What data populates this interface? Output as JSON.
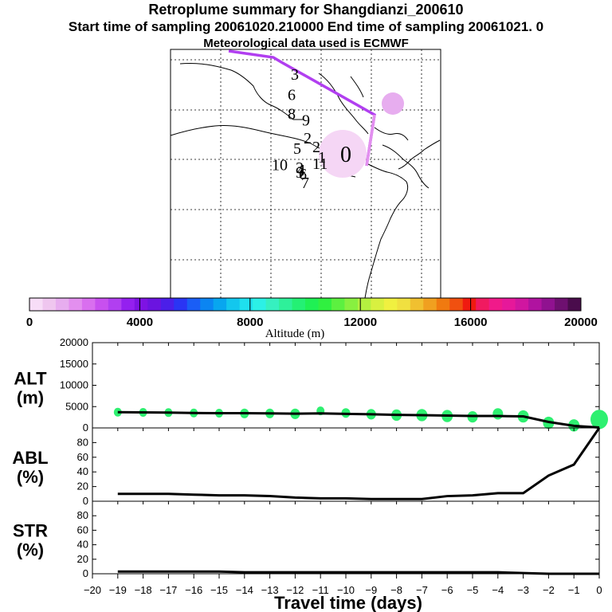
{
  "header": {
    "title": "Retroplume summary for Shangdianzi_200610",
    "sampling": "Start time of sampling 20061020.210000     End time of sampling 20061021.     0",
    "met": "Meteorological data used is ECMWF"
  },
  "map": {
    "labels": [
      {
        "text": "3",
        "x": 2.5,
        "y": 1.5
      },
      {
        "text": "6",
        "x": 2.1,
        "y": 3.1
      },
      {
        "text": "8",
        "x": 2.1,
        "y": 4.6
      },
      {
        "text": "9",
        "x": 3.9,
        "y": 5.1
      },
      {
        "text": "2",
        "x": 4.1,
        "y": 6.5
      },
      {
        "text": "5",
        "x": 2.8,
        "y": 7.3
      },
      {
        "text": "10",
        "x": 0.1,
        "y": 8.6
      },
      {
        "text": "3",
        "x": 3.1,
        "y": 8.8
      },
      {
        "text": "4",
        "x": 3.3,
        "y": 9.0
      },
      {
        "text": "9",
        "x": 3.1,
        "y": 9.2
      },
      {
        "text": "6",
        "x": 3.5,
        "y": 9.3
      },
      {
        "text": "7",
        "x": 3.8,
        "y": 10.0
      },
      {
        "text": "11",
        "x": 5.2,
        "y": 8.5
      },
      {
        "text": "2",
        "x": 5.2,
        "y": 7.2
      },
      {
        "text": "1",
        "x": 5.9,
        "y": 8.0
      }
    ]
  },
  "colorbar": {
    "colors": [
      "#f7ddf7",
      "#efc6ef",
      "#e7adef",
      "#e38fef",
      "#d96fef",
      "#c850ef",
      "#b13ff0",
      "#9420ef",
      "#7e13e3",
      "#6b14e0",
      "#4b1fe9",
      "#2a35f4",
      "#1a5ef6",
      "#0b85f2",
      "#08a6ef",
      "#13c7ee",
      "#1fe0ee",
      "#2cf0e6",
      "#36f0c0",
      "#2ef09a",
      "#24f074",
      "#1ff054",
      "#30f040",
      "#5cf040",
      "#88f040",
      "#b4f040",
      "#d8f040",
      "#f0f040",
      "#f0e040",
      "#f0c030",
      "#f0a020",
      "#f07a10",
      "#f05010",
      "#f01a10",
      "#f01a60",
      "#f01a8a",
      "#e6189a",
      "#d016a0",
      "#b013a0",
      "#901290",
      "#6e1070",
      "#4a0c4c"
    ],
    "tick_labels": [
      "0",
      "4000",
      "8000",
      "12000",
      "16000",
      "20000"
    ],
    "xlabel": "Altitude (m)"
  },
  "chart_data": [
    {
      "type": "line",
      "title": "ALT (m)",
      "title_line1": "ALT",
      "title_line2": "(m)",
      "ylim": [
        0,
        20000
      ],
      "yticks": [
        "20000",
        "15000",
        "10000",
        "5000",
        "0"
      ],
      "ytick_values": [
        20000,
        15000,
        10000,
        5000,
        0
      ],
      "x": [
        -19,
        -18,
        -17,
        -16,
        -15,
        -14,
        -13,
        -12,
        -11,
        -10,
        -9,
        -8,
        -7,
        -6,
        -5,
        -4,
        -3,
        -2,
        -1,
        0
      ],
      "values": [
        3700,
        3650,
        3600,
        3500,
        3450,
        3450,
        3400,
        3350,
        3400,
        3300,
        3200,
        3050,
        3000,
        2900,
        2800,
        2800,
        2700,
        1400,
        500,
        100
      ],
      "markers": [
        {
          "x": -19,
          "y": 3700,
          "s": 10
        },
        {
          "x": -18,
          "y": 3650,
          "s": 10
        },
        {
          "x": -17,
          "y": 3600,
          "s": 10
        },
        {
          "x": -16,
          "y": 3500,
          "s": 10
        },
        {
          "x": -15,
          "y": 3450,
          "s": 10
        },
        {
          "x": -14,
          "y": 3400,
          "s": 11
        },
        {
          "x": -13,
          "y": 3400,
          "s": 11
        },
        {
          "x": -12,
          "y": 3300,
          "s": 12
        },
        {
          "x": -11,
          "y": 4000,
          "s": 10
        },
        {
          "x": -10,
          "y": 3500,
          "s": 11
        },
        {
          "x": -9,
          "y": 3200,
          "s": 12
        },
        {
          "x": -8,
          "y": 3000,
          "s": 13
        },
        {
          "x": -7,
          "y": 3000,
          "s": 14
        },
        {
          "x": -6,
          "y": 2800,
          "s": 14
        },
        {
          "x": -5,
          "y": 2600,
          "s": 13
        },
        {
          "x": -4,
          "y": 3300,
          "s": 13
        },
        {
          "x": -3,
          "y": 2700,
          "s": 14
        },
        {
          "x": -2,
          "y": 1200,
          "s": 14
        },
        {
          "x": -1,
          "y": 600,
          "s": 14
        },
        {
          "x": 0,
          "y": 2000,
          "s": 22
        }
      ]
    },
    {
      "type": "line",
      "title": "ABL (%)",
      "title_line1": "ABL",
      "title_line2": "(%)",
      "ylim": [
        0,
        100
      ],
      "yticks": [
        "80",
        "60",
        "40",
        "20",
        "0"
      ],
      "ytick_values": [
        80,
        60,
        40,
        20,
        0
      ],
      "x": [
        -19,
        -18,
        -17,
        -16,
        -15,
        -14,
        -13,
        -12,
        -11,
        -10,
        -9,
        -8,
        -7,
        -6,
        -5,
        -4,
        -3,
        -2,
        -1,
        0
      ],
      "values": [
        10,
        10,
        10,
        9,
        8,
        8,
        7,
        5,
        4,
        4,
        3,
        3,
        3,
        7,
        8,
        11,
        11,
        35,
        50,
        100
      ]
    },
    {
      "type": "line",
      "title": "STR (%)",
      "title_line1": "STR",
      "title_line2": "(%)",
      "ylim": [
        0,
        100
      ],
      "yticks": [
        "80",
        "60",
        "40",
        "20",
        "0"
      ],
      "ytick_values": [
        80,
        60,
        40,
        20,
        0
      ],
      "x": [
        -19,
        -18,
        -17,
        -16,
        -15,
        -14,
        -13,
        -12,
        -11,
        -10,
        -9,
        -8,
        -7,
        -6,
        -5,
        -4,
        -3,
        -2,
        -1,
        0
      ],
      "values": [
        3,
        3,
        3,
        3,
        3,
        2,
        2,
        2,
        2,
        2,
        2,
        2,
        2,
        2,
        2,
        2,
        1,
        0,
        0,
        0
      ]
    }
  ],
  "xaxis": {
    "ticks": [
      "−20",
      "−19",
      "−18",
      "−17",
      "−16",
      "−15",
      "−14",
      "−13",
      "−12",
      "−11",
      "−10",
      "−9",
      "−8",
      "−7",
      "−6",
      "−5",
      "−4",
      "−3",
      "−2",
      "−1",
      "0"
    ],
    "tick_values": [
      -20,
      -19,
      -18,
      -17,
      -16,
      -15,
      -14,
      -13,
      -12,
      -11,
      -10,
      -9,
      -8,
      -7,
      -6,
      -5,
      -4,
      -3,
      -2,
      -1,
      0
    ],
    "label": "Travel time (days)"
  }
}
